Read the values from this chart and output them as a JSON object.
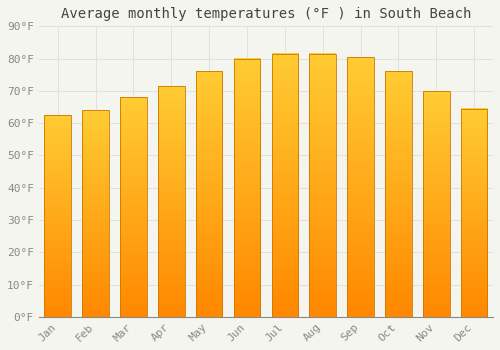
{
  "title": "Average monthly temperatures (°F ) in South Beach",
  "months": [
    "Jan",
    "Feb",
    "Mar",
    "Apr",
    "May",
    "Jun",
    "Jul",
    "Aug",
    "Sep",
    "Oct",
    "Nov",
    "Dec"
  ],
  "values": [
    62.5,
    64.0,
    68.0,
    71.5,
    76.0,
    80.0,
    81.5,
    81.5,
    80.5,
    76.0,
    70.0,
    64.5
  ],
  "bar_color_top": "#FFCC00",
  "bar_color_bottom": "#FF9900",
  "bar_edge_color": "#CC7700",
  "background_color": "#F5F5F0",
  "plot_bg_color": "#F5F5F0",
  "grid_color": "#DDDDDD",
  "text_color": "#888888",
  "ylim": [
    0,
    90
  ],
  "yticks": [
    0,
    10,
    20,
    30,
    40,
    50,
    60,
    70,
    80,
    90
  ],
  "ytick_labels": [
    "0°F",
    "10°F",
    "20°F",
    "30°F",
    "40°F",
    "50°F",
    "60°F",
    "70°F",
    "80°F",
    "90°F"
  ],
  "title_fontsize": 10,
  "tick_fontsize": 8,
  "font_family": "monospace"
}
